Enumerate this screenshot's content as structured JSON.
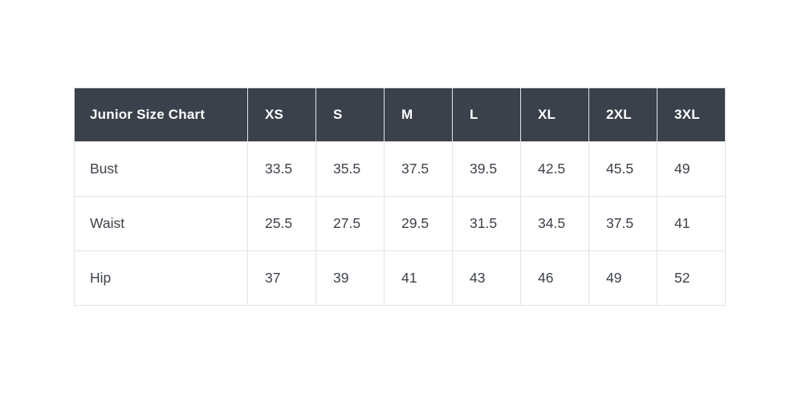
{
  "page": {
    "background_color": "#ffffff"
  },
  "colors": {
    "header_background": "#3a414b",
    "header_text": "#fefefe",
    "body_text": "#3d424a",
    "grid_border": "#e2e2e2"
  },
  "table": {
    "title": "Junior Size Chart",
    "header": [
      "Junior Size Chart",
      "XS",
      "S",
      "M",
      "L",
      "XL",
      "2XL",
      "3XL"
    ],
    "rows": [
      {
        "label": "Bust",
        "values": [
          "33.5",
          "35.5",
          "37.5",
          "39.5",
          "42.5",
          "45.5",
          "49"
        ]
      },
      {
        "label": "Waist",
        "values": [
          "25.5",
          "27.5",
          "29.5",
          "31.5",
          "34.5",
          "37.5",
          "41"
        ]
      },
      {
        "label": "Hip",
        "values": [
          "37",
          "39",
          "41",
          "43",
          "46",
          "49",
          "52"
        ]
      }
    ]
  },
  "chart_data": {
    "type": "table",
    "title": "Junior Size Chart",
    "columns": [
      "Junior Size Chart",
      "XS",
      "S",
      "M",
      "L",
      "XL",
      "2XL",
      "3XL"
    ],
    "categories": [
      "XS",
      "S",
      "M",
      "L",
      "XL",
      "2XL",
      "3XL"
    ],
    "series": [
      {
        "name": "Bust",
        "values": [
          33.5,
          35.5,
          37.5,
          39.5,
          42.5,
          45.5,
          49
        ]
      },
      {
        "name": "Waist",
        "values": [
          25.5,
          27.5,
          29.5,
          31.5,
          34.5,
          37.5,
          41
        ]
      },
      {
        "name": "Hip",
        "values": [
          37,
          39,
          41,
          43,
          46,
          49,
          52
        ]
      }
    ],
    "legend_position": "none",
    "grid": true
  }
}
